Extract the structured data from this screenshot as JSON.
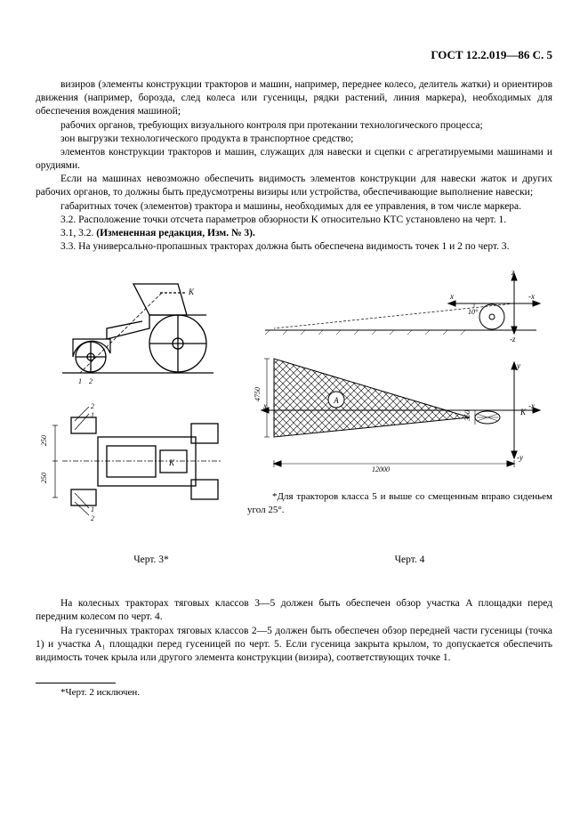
{
  "header": "ГОСТ 12.2.019—86 С. 5",
  "paragraphs": [
    "визиров (элементы конструкции тракторов и машин, например, переднее колесо, делитель жатки) и ориентиров движения (например, борозда, след колеса или гусеницы, рядки растений, линия маркера), необходимых для обеспечения вождения машиной;",
    "рабочих органов, требующих визуального контроля при протекании технологического процесса;",
    "зон выгрузки технологического продукта в транспортное средство;",
    "элементов конструкции тракторов и машин, служащих для навески и сцепки с агрегатируемыми машинами и орудиями.",
    "Если на машинах невозможно обеспечить видимость элементов конструкции для навески жаток и других рабочих органов, то должны быть предусмотрены визиры или устройства, обеспечивающие выполнение навески;",
    "габаритных точек (элементов) трактора и машины, необходимых для ее управления, в том числе маркера.",
    "3.2. Расположение точки отсчета параметров обзорности K относительно КТС установлено на черт. 1.",
    "3.1, 3.2. (Измененная редакция, Изм. № 3).",
    "3.3. На универсально-пропашных тракторах должна быть обеспечена видимость точек 1 и 2 по черт. 3."
  ],
  "paragraphs_bold_idx": 7,
  "fig4_note": "*Для тракторов класса 5 и выше со смещенным вправо сиденьем угол 25°.",
  "caption_left": "Черт. 3*",
  "caption_right": "Черт. 4",
  "paragraphs_after": [
    "На колесных тракторах тяговых классов 3—5 должен быть обеспечен обзор участка A площадки перед передним колесом по черт. 4.",
    "На гусеничных тракторах тяговых классов 2—5 должен быть обеспечен обзор передней части гусеницы (точка 1) и участка A₁ площадки перед гусеницей по черт. 5. Если гусеница закрыта крылом, то допускается обеспечить видимость точек крыла или другого элемента конструкции (визира), соответствующих точке 1."
  ],
  "footnote": "*Черт. 2 исключен.",
  "fig3": {
    "dim_v1": "250",
    "dim_v2": "250",
    "labels": [
      "1",
      "2",
      "K"
    ]
  },
  "fig4": {
    "axes": [
      "x",
      "-x",
      "y",
      "-y",
      "z",
      "-z",
      "K"
    ],
    "dim_bottom": "12000",
    "dim_v_left": "4750",
    "dim_v_right": "350",
    "angle": "10°",
    "area_label": "A"
  }
}
